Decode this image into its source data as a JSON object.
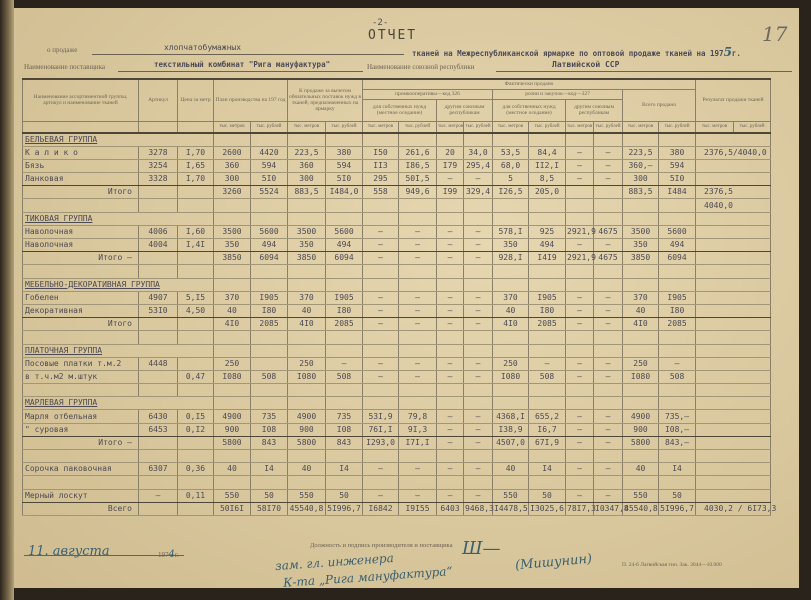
{
  "page_number": "-2-",
  "sheet_number_handwritten": "17",
  "title": "ОТЧЕТ",
  "line1": {
    "prefix": "о продаже",
    "fabric": "хлопчатобумажных",
    "suffix": "тканей на Межреспубликанской ярмарке по оптовой продаже тканей на 197",
    "year_digit": "5",
    "year_suffix": "г."
  },
  "line2": {
    "supplier_label": "Наименование поставщика",
    "supplier": "текстильный комбинат \"Рига мануфактура\"",
    "republic_label": "Наименование союзной республики",
    "republic": "Латвийской ССР"
  },
  "header": {
    "name": "Наименование ассортиментной группы, артикул и наименование тканей",
    "article": "Артикул",
    "price": "Цена за метр",
    "plan": "План производства на 197 год",
    "for_sale": "К продаже за вычетом обязательных поставок нужд в тканей, предназначенных на ярмарку",
    "actual": "Фактически продано",
    "promkoop": "промкооперативы—код 326",
    "retail": "розни и закупок—код—327",
    "total_sold": "Всего продано",
    "result": "Результат продажи тканей",
    "own_needs": "для собственных нужд (местное оседание)",
    "other_republics": "другим союзным республикам",
    "unit_m": "тыс. метров",
    "unit_r": "тыс. рублей"
  },
  "table": {
    "rows": [
      {
        "type": "group first",
        "cells": [
          "БЕЛЬЕВАЯ ГРУППА"
        ]
      },
      {
        "type": "item",
        "cells": [
          "К а л и к о",
          "3278",
          "I,70",
          "2600",
          "4420",
          "223,5",
          "380",
          "I50",
          "261,6",
          "20",
          "34,0",
          "53,5",
          "84,4",
          "–",
          "–",
          "223,5",
          "380",
          "2376,5/4040,0"
        ]
      },
      {
        "type": "item",
        "cells": [
          "Бязь",
          "3254",
          "I,65",
          "360",
          "594",
          "360",
          "594",
          "II3",
          "I86,5",
          "I79",
          "295,4",
          "68,0",
          "II2,I",
          "–",
          "–",
          "360,–",
          "594",
          ""
        ]
      },
      {
        "type": "item sep",
        "cells": [
          "Ланковая",
          "3328",
          "I,70",
          "300",
          "5I0",
          "300",
          "5I0",
          "295",
          "50I,5",
          "–",
          "–",
          "5",
          "8,5",
          "–",
          "–",
          "300",
          "5I0",
          ""
        ]
      },
      {
        "type": "total",
        "cells": [
          "Итого",
          "",
          "",
          "3260",
          "5524",
          "883,5",
          "I484,0",
          "558",
          "949,6",
          "I99",
          "329,4",
          "I26,5",
          "205,0",
          "",
          "",
          "883,5",
          "I484",
          "2376,5"
        ]
      },
      {
        "type": "blank",
        "cells": [
          "",
          "",
          "",
          "",
          "",
          "",
          "",
          "",
          "",
          "",
          "",
          "",
          "",
          "",
          "",
          "",
          "",
          "4040,0"
        ]
      },
      {
        "type": "group",
        "cells": [
          "ТИКОВАЯ ГРУППА"
        ]
      },
      {
        "type": "item",
        "cells": [
          "Наволочная",
          "4006",
          "I,60",
          "3500",
          "5600",
          "3500",
          "5600",
          "–",
          "–",
          "–",
          "–",
          "578,I",
          "925",
          "2921,9",
          "4675",
          "3500",
          "5600",
          ""
        ]
      },
      {
        "type": "item sep",
        "cells": [
          "Наволочная",
          "4004",
          "I,4I",
          "350",
          "494",
          "350",
          "494",
          "–",
          "–",
          "–",
          "–",
          "350",
          "494",
          "–",
          "–",
          "350",
          "494",
          ""
        ]
      },
      {
        "type": "total",
        "cells": [
          "Итого –",
          "",
          "",
          "3850",
          "6094",
          "3850",
          "6094",
          "–",
          "–",
          "–",
          "–",
          "928,I",
          "I4I9",
          "2921,9",
          "4675",
          "3850",
          "6094",
          ""
        ]
      },
      {
        "type": "blank",
        "cells": [
          "",
          "",
          "",
          "",
          "",
          "",
          "",
          "",
          "",
          "",
          "",
          "",
          "",
          "",
          "",
          "",
          "",
          ""
        ]
      },
      {
        "type": "group",
        "cells": [
          "МЕБЕЛЬНО-ДЕКОРАТИВНАЯ ГРУППА"
        ]
      },
      {
        "type": "item",
        "cells": [
          "Гобелен",
          "4907",
          "5,I5",
          "370",
          "I905",
          "370",
          "I905",
          "–",
          "–",
          "–",
          "–",
          "370",
          "I905",
          "–",
          "–",
          "370",
          "I905",
          ""
        ]
      },
      {
        "type": "item sep",
        "cells": [
          "Декоративная",
          "53I0",
          "4,50",
          "40",
          "I80",
          "40",
          "I80",
          "–",
          "–",
          "–",
          "–",
          "40",
          "I80",
          "–",
          "–",
          "40",
          "I80",
          ""
        ]
      },
      {
        "type": "total",
        "cells": [
          "Итого",
          "",
          "",
          "4I0",
          "2085",
          "4I0",
          "2085",
          "–",
          "–",
          "–",
          "–",
          "4I0",
          "2085",
          "–",
          "–",
          "4I0",
          "2085",
          ""
        ]
      },
      {
        "type": "blank",
        "cells": [
          "",
          "",
          "",
          "",
          "",
          "",
          "",
          "",
          "",
          "",
          "",
          "",
          "",
          "",
          "",
          "",
          "",
          ""
        ]
      },
      {
        "type": "group",
        "cells": [
          "ПЛАТОЧНАЯ ГРУППА"
        ]
      },
      {
        "type": "item",
        "cells": [
          "Посовые платки т.м.2",
          "4448",
          "",
          "250",
          "",
          "250",
          "–",
          "–",
          "–",
          "–",
          "–",
          "250",
          "–",
          "–",
          "–",
          "250",
          "–",
          ""
        ]
      },
      {
        "type": "item",
        "cells": [
          "в т.ч.м2 м.штук",
          "",
          "0,47",
          "I080",
          "508",
          "I080",
          "508",
          "–",
          "–",
          "–",
          "–",
          "I080",
          "508",
          "–",
          "–",
          "I080",
          "508",
          ""
        ]
      },
      {
        "type": "blank",
        "cells": [
          "",
          "",
          "",
          "",
          "",
          "",
          "",
          "",
          "",
          "",
          "",
          "",
          "",
          "",
          "",
          "",
          "",
          ""
        ]
      },
      {
        "type": "group",
        "cells": [
          "МАРЛЕВАЯ ГРУППА"
        ]
      },
      {
        "type": "item",
        "cells": [
          "Марля отбельная",
          "6430",
          "0,I5",
          "4900",
          "735",
          "4900",
          "735",
          "53I,9",
          "79,8",
          "–",
          "–",
          "4368,I",
          "655,2",
          "–",
          "–",
          "4900",
          "735,–",
          ""
        ]
      },
      {
        "type": "item sep",
        "cells": [
          "  \"    суровая",
          "6453",
          "0,I2",
          "900",
          "I08",
          "900",
          "I08",
          "76I,I",
          "9I,3",
          "–",
          "–",
          "I38,9",
          "I6,7",
          "–",
          "–",
          "900",
          "I08,–",
          ""
        ]
      },
      {
        "type": "total",
        "cells": [
          "Итого –",
          "",
          "",
          "5800",
          "843",
          "5800",
          "843",
          "I293,0",
          "I7I,I",
          "–",
          "–",
          "4507,0",
          "67I,9",
          "–",
          "–",
          "5800",
          "843,–",
          ""
        ]
      },
      {
        "type": "blank",
        "cells": [
          "",
          "",
          "",
          "",
          "",
          "",
          "",
          "",
          "",
          "",
          "",
          "",
          "",
          "",
          "",
          "",
          "",
          ""
        ]
      },
      {
        "type": "item",
        "cells": [
          "Сорочка паковочная",
          "6307",
          "0,36",
          "40",
          "I4",
          "40",
          "I4",
          "–",
          "–",
          "–",
          "–",
          "40",
          "I4",
          "–",
          "–",
          "40",
          "I4",
          ""
        ]
      },
      {
        "type": "blank",
        "cells": [
          "",
          "",
          "",
          "",
          "",
          "",
          "",
          "",
          "",
          "",
          "",
          "",
          "",
          "",
          "",
          "",
          "",
          ""
        ]
      },
      {
        "type": "item sep",
        "cells": [
          "Мерный лоскут",
          "–",
          "0,11",
          "550",
          "50",
          "550",
          "50",
          "–",
          "–",
          "–",
          "–",
          "550",
          "50",
          "–",
          "–",
          "550",
          "50",
          ""
        ]
      },
      {
        "type": "total",
        "cells": [
          "Всего",
          "",
          "",
          "50I6I",
          "58I70",
          "45540,8",
          "5I996,7",
          "I6842",
          "I9I55",
          "6403",
          "9468,3",
          "I4478,5",
          "I3025,6",
          "78I7,3",
          "I0347,8",
          "45540,8",
          "5I996,7",
          "4030,2 / 6I73,3"
        ]
      }
    ]
  },
  "footer": {
    "signature_label": "Должность и подпись производителя и поставщика",
    "date_hand": "11. августа",
    "year_print": "197",
    "year_hand": "4",
    "year_suffix": "г.",
    "position_hand_1": "зам. гл. инженера",
    "position_hand_2": "К-та „Рига мануфактура“",
    "signer_hand": "(Мишунин)",
    "print_code": "П. 24-б  Латвийская тип. Зак. 3044—10.000"
  }
}
